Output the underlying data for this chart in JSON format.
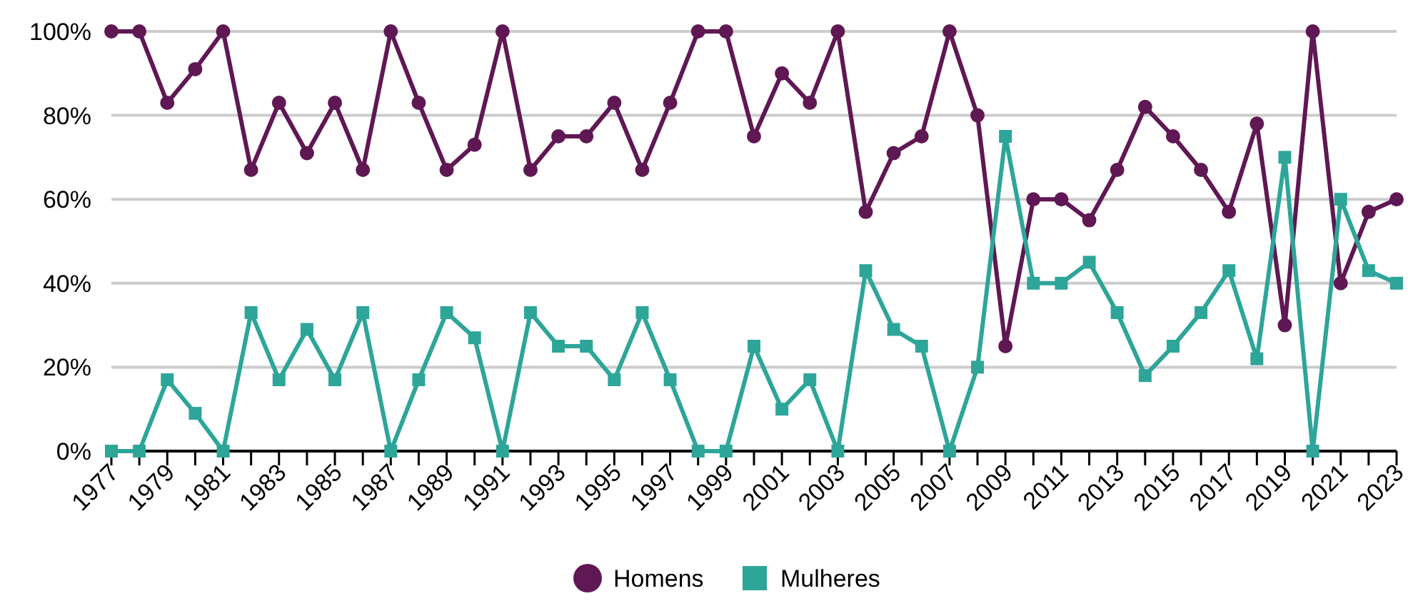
{
  "chart_data": {
    "type": "line",
    "x": [
      1977,
      1978,
      1979,
      1980,
      1981,
      1982,
      1983,
      1984,
      1985,
      1986,
      1987,
      1988,
      1989,
      1990,
      1991,
      1992,
      1993,
      1994,
      1995,
      1996,
      1997,
      1998,
      1999,
      2000,
      2001,
      2002,
      2003,
      2004,
      2005,
      2006,
      2007,
      2008,
      2009,
      2010,
      2011,
      2012,
      2013,
      2014,
      2015,
      2016,
      2017,
      2018,
      2019,
      2020,
      2021,
      2022,
      2023
    ],
    "series": [
      {
        "name": "Homens",
        "color": "#5f1854",
        "marker": "circle",
        "values": [
          100,
          100,
          83,
          91,
          100,
          67,
          83,
          71,
          83,
          67,
          100,
          83,
          67,
          73,
          100,
          67,
          75,
          75,
          83,
          67,
          83,
          100,
          100,
          75,
          90,
          83,
          100,
          57,
          71,
          75,
          100,
          80,
          25,
          60,
          60,
          55,
          67,
          82,
          75,
          67,
          57,
          78,
          30,
          100,
          40,
          57,
          60
        ]
      },
      {
        "name": "Mulheres",
        "color": "#2ea599",
        "marker": "square",
        "values": [
          0,
          0,
          17,
          9,
          0,
          33,
          17,
          29,
          17,
          33,
          0,
          17,
          33,
          27,
          0,
          33,
          25,
          25,
          17,
          33,
          17,
          0,
          0,
          25,
          10,
          17,
          0,
          43,
          29,
          25,
          0,
          20,
          75,
          40,
          40,
          45,
          33,
          18,
          25,
          33,
          43,
          22,
          70,
          0,
          60,
          43,
          40
        ]
      }
    ],
    "xlim": [
      1977,
      2023
    ],
    "xticks": [
      1977,
      {
        "value": 1978,
        "label": null
      },
      1979,
      {
        "value": 1980,
        "label": null
      },
      1981,
      {
        "value": 1982,
        "label": null
      },
      1983,
      {
        "value": 1984,
        "label": null
      },
      1985,
      {
        "value": 1986,
        "label": null
      },
      1987,
      {
        "value": 1988,
        "label": null
      },
      1989,
      {
        "value": 1990,
        "label": null
      },
      1991,
      {
        "value": 1992,
        "label": null
      },
      1993,
      {
        "value": 1994,
        "label": null
      },
      1995,
      {
        "value": 1996,
        "label": null
      },
      1997,
      {
        "value": 1998,
        "label": null
      },
      1999,
      {
        "value": 2000,
        "label": null
      },
      2001,
      {
        "value": 2002,
        "label": null
      },
      2003,
      {
        "value": 2004,
        "label": null
      },
      2005,
      {
        "value": 2006,
        "label": null
      },
      2007,
      {
        "value": 2008,
        "label": null
      },
      2009,
      {
        "value": 2010,
        "label": null
      },
      2011,
      {
        "value": 2012,
        "label": null
      },
      2013,
      {
        "value": 2014,
        "label": null
      },
      2015,
      {
        "value": 2016,
        "label": null
      },
      2017,
      {
        "value": 2018,
        "label": null
      },
      2019,
      {
        "value": 2020,
        "label": null
      },
      2021,
      {
        "value": 2022,
        "label": null
      },
      2023
    ],
    "ylim": [
      0,
      100
    ],
    "yticks": [
      {
        "value": 0,
        "label": "0%"
      },
      {
        "value": 20,
        "label": "20%"
      },
      {
        "value": 40,
        "label": "40%"
      },
      {
        "value": 60,
        "label": "60%"
      },
      {
        "value": 80,
        "label": "80%"
      },
      {
        "value": 100,
        "label": "100%"
      }
    ],
    "grid": "y",
    "legend": "bottom",
    "line_style": "solid"
  }
}
